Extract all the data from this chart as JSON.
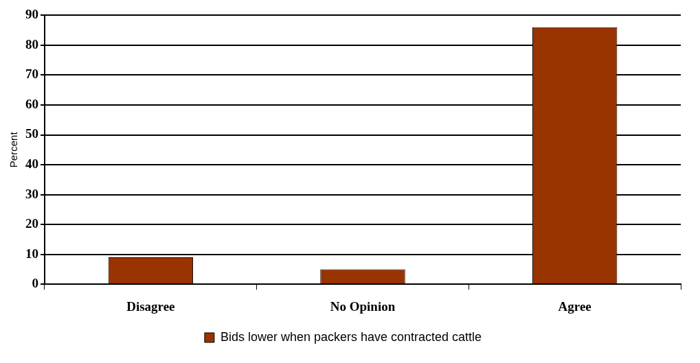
{
  "chart_data": {
    "type": "bar",
    "ylabel": "Percent",
    "categories": [
      "Disagree",
      "No Opinion",
      "Agree"
    ],
    "series": [
      {
        "name": "Bids lower when packers have contracted cattle",
        "color": "#993300",
        "values": [
          9,
          5,
          86
        ]
      }
    ],
    "ylim": [
      0,
      90
    ],
    "yticks": [
      0,
      10,
      20,
      30,
      40,
      50,
      60,
      70,
      80,
      90
    ],
    "grid": "y",
    "legend": "bottom"
  }
}
